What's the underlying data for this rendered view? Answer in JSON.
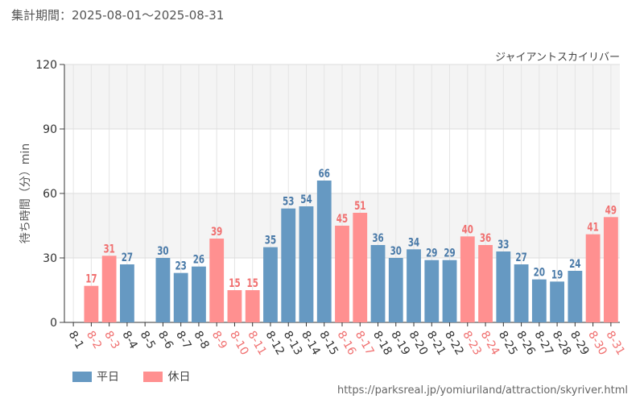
{
  "header": {
    "period_label": "集計期間：2025-08-01～2025-08-31",
    "attraction_name": "ジャイアントスカイリバー"
  },
  "footer": {
    "source_url": "https://parksreal.jp/yomiuriland/attraction/skyriver.html"
  },
  "colors": {
    "weekday": "#6699c2",
    "holiday": "#ff9090",
    "weekday_text": "#4a7aa8",
    "holiday_text": "#f07070"
  },
  "chart_data": {
    "type": "bar",
    "ylabel": "待ち時間（分）min",
    "ylim": [
      0,
      120
    ],
    "yticks": [
      0,
      30,
      60,
      90,
      120
    ],
    "legend": [
      {
        "name": "平日",
        "kind": "weekday"
      },
      {
        "name": "休日",
        "kind": "holiday"
      }
    ],
    "legend_position": "bottom-left",
    "categories": [
      "8-1",
      "8-2",
      "8-3",
      "8-4",
      "8-5",
      "8-6",
      "8-7",
      "8-8",
      "8-9",
      "8-10",
      "8-11",
      "8-12",
      "8-13",
      "8-14",
      "8-15",
      "8-16",
      "8-17",
      "8-18",
      "8-19",
      "8-20",
      "8-21",
      "8-22",
      "8-23",
      "8-24",
      "8-25",
      "8-26",
      "8-27",
      "8-28",
      "8-29",
      "8-30",
      "8-31"
    ],
    "values": [
      null,
      17,
      31,
      27,
      null,
      30,
      23,
      26,
      39,
      15,
      15,
      35,
      53,
      54,
      66,
      45,
      51,
      36,
      30,
      34,
      29,
      29,
      40,
      36,
      33,
      27,
      20,
      19,
      24,
      41,
      49
    ],
    "day_type": [
      "weekday",
      "holiday",
      "holiday",
      "weekday",
      "weekday",
      "weekday",
      "weekday",
      "weekday",
      "holiday",
      "holiday",
      "holiday",
      "weekday",
      "weekday",
      "weekday",
      "weekday",
      "holiday",
      "holiday",
      "weekday",
      "weekday",
      "weekday",
      "weekday",
      "weekday",
      "holiday",
      "holiday",
      "weekday",
      "weekday",
      "weekday",
      "weekday",
      "weekday",
      "holiday",
      "holiday"
    ]
  }
}
